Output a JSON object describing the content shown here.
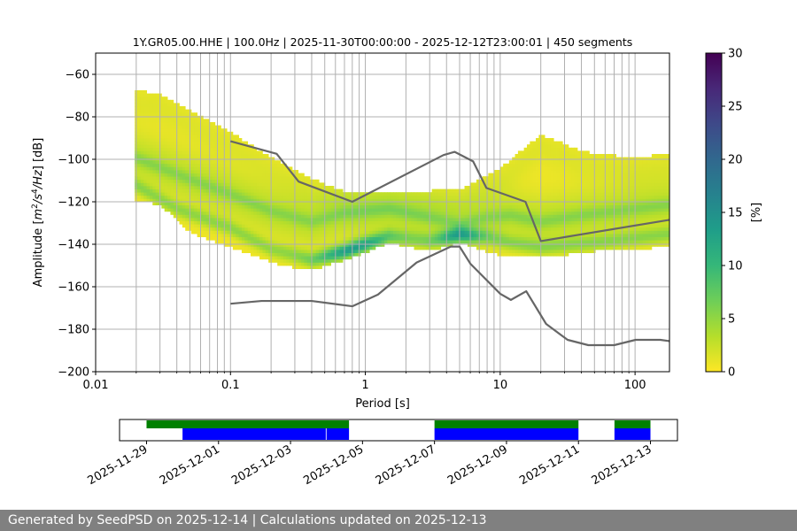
{
  "colors": {
    "model_line": "#666666",
    "grid": "#b0b0b0",
    "footer_bg": "#808080",
    "avail_top": "#008000",
    "avail_bottom": "#0000ff",
    "colormap": [
      "#fde725",
      "#b5de2b",
      "#6ece58",
      "#35b779",
      "#1f9e89",
      "#26828e",
      "#31688e",
      "#3e4989",
      "#482878",
      "#440154"
    ]
  },
  "chart_data": {
    "type": "heatmap",
    "title": "1Y.GR05.00.HHE | 100.0Hz | 2025-11-30T00:00:00 - 2025-12-12T23:00:01 | 450 segments",
    "xlabel": "Period [s]",
    "ylabel_main": "Amplitude [",
    "ylabel_unit_m": "m",
    "ylabel_exp1": "2",
    "ylabel_unit_s": "/s",
    "ylabel_exp2": "4",
    "ylabel_unit_hz": "/Hz",
    "ylabel_tail": "] [dB]",
    "x_scale": "log",
    "xlim": [
      0.01,
      180
    ],
    "ylim": [
      -200,
      -50
    ],
    "x_ticks": [
      {
        "v": 0.01,
        "label": "0.01"
      },
      {
        "v": 0.1,
        "label": "0.1"
      },
      {
        "v": 1,
        "label": "1"
      },
      {
        "v": 10,
        "label": "10"
      },
      {
        "v": 100,
        "label": "100"
      }
    ],
    "y_ticks": [
      {
        "v": -60,
        "label": "−60"
      },
      {
        "v": -80,
        "label": "−80"
      },
      {
        "v": -100,
        "label": "−100"
      },
      {
        "v": -120,
        "label": "−120"
      },
      {
        "v": -140,
        "label": "−140"
      },
      {
        "v": -160,
        "label": "−160"
      },
      {
        "v": -180,
        "label": "−180"
      },
      {
        "v": -200,
        "label": "−200"
      }
    ],
    "grid": true,
    "colorbar": {
      "label": "[%]",
      "range": [
        0,
        30
      ],
      "ticks": [
        {
          "v": 0,
          "label": "0"
        },
        {
          "v": 5,
          "label": "5"
        },
        {
          "v": 10,
          "label": "10"
        },
        {
          "v": 15,
          "label": "15"
        },
        {
          "v": 20,
          "label": "20"
        },
        {
          "v": 25,
          "label": "25"
        },
        {
          "v": 30,
          "label": "30"
        }
      ]
    },
    "high_noise_model": [
      [
        0.1,
        -91.5
      ],
      [
        0.22,
        -97.4
      ],
      [
        0.32,
        -110.5
      ],
      [
        0.8,
        -120
      ],
      [
        3.8,
        -98
      ],
      [
        4.6,
        -96.5
      ],
      [
        6.3,
        -101
      ],
      [
        7.9,
        -113.5
      ],
      [
        15.4,
        -120
      ],
      [
        20,
        -138.5
      ],
      [
        180,
        -128.5
      ]
    ],
    "low_noise_model": [
      [
        0.1,
        -168
      ],
      [
        0.17,
        -166.7
      ],
      [
        0.4,
        -166.7
      ],
      [
        0.8,
        -169.2
      ],
      [
        1.24,
        -163.7
      ],
      [
        2.4,
        -148.6
      ],
      [
        4.3,
        -141.1
      ],
      [
        5.0,
        -141.1
      ],
      [
        6.0,
        -149.1
      ],
      [
        10.0,
        -163.3
      ],
      [
        12.0,
        -166.2
      ],
      [
        15.6,
        -162.1
      ],
      [
        21.9,
        -177.5
      ],
      [
        31.6,
        -185.0
      ],
      [
        45.0,
        -187.5
      ],
      [
        70.0,
        -187.5
      ],
      [
        101.0,
        -185.0
      ],
      [
        154.0,
        -185.0
      ],
      [
        180.0,
        -185.6
      ]
    ],
    "psd_distribution": {
      "period_range": [
        0.0195,
        180
      ],
      "median": [
        [
          0.02,
          -100
        ],
        [
          0.05,
          -110
        ],
        [
          0.1,
          -117
        ],
        [
          0.2,
          -125
        ],
        [
          0.4,
          -130
        ],
        [
          0.7,
          -126
        ],
        [
          1.5,
          -124
        ],
        [
          3,
          -128
        ],
        [
          5,
          -131
        ],
        [
          8,
          -128
        ],
        [
          12,
          -127
        ],
        [
          20,
          -130
        ],
        [
          40,
          -127
        ],
        [
          100,
          -124
        ],
        [
          180,
          -122
        ]
      ],
      "low": [
        [
          0.02,
          -113
        ],
        [
          0.04,
          -124
        ],
        [
          0.1,
          -133
        ],
        [
          0.2,
          -143
        ],
        [
          0.4,
          -148
        ],
        [
          0.7,
          -144
        ],
        [
          1.5,
          -137
        ],
        [
          3,
          -139
        ],
        [
          5,
          -136
        ],
        [
          8,
          -137
        ],
        [
          12,
          -140
        ],
        [
          20,
          -142
        ],
        [
          50,
          -140
        ],
        [
          180,
          -136
        ]
      ],
      "low_peak": 12,
      "low_spread": 3.5,
      "peak_value": 14,
      "envelope_lower": [
        [
          0.02,
          -120
        ],
        [
          0.03,
          -122
        ],
        [
          0.05,
          -135
        ],
        [
          0.1,
          -142
        ],
        [
          0.25,
          -151
        ],
        [
          0.4,
          -153
        ],
        [
          0.8,
          -147
        ],
        [
          1.5,
          -140
        ],
        [
          3,
          -144
        ],
        [
          5,
          -140
        ],
        [
          10,
          -146
        ],
        [
          20,
          -147
        ],
        [
          50,
          -144
        ],
        [
          180,
          -142
        ]
      ],
      "envelope_upper": [
        [
          0.02,
          -68
        ],
        [
          0.03,
          -70
        ],
        [
          0.05,
          -78
        ],
        [
          0.1,
          -88
        ],
        [
          0.2,
          -100
        ],
        [
          0.4,
          -110
        ],
        [
          0.8,
          -117
        ],
        [
          2,
          -116
        ],
        [
          5,
          -115
        ],
        [
          10,
          -105
        ],
        [
          20,
          -89
        ],
        [
          40,
          -97
        ],
        [
          100,
          -100
        ],
        [
          180,
          -98
        ]
      ]
    },
    "availability": {
      "x_ticks": [
        {
          "date": "2025-11-29",
          "label": "2025-11-29"
        },
        {
          "date": "2025-12-01",
          "label": "2025-12-01"
        },
        {
          "date": "2025-12-03",
          "label": "2025-12-03"
        },
        {
          "date": "2025-12-05",
          "label": "2025-12-05"
        },
        {
          "date": "2025-12-07",
          "label": "2025-12-07"
        },
        {
          "date": "2025-12-09",
          "label": "2025-12-09"
        },
        {
          "date": "2025-12-11",
          "label": "2025-12-11"
        },
        {
          "date": "2025-12-13",
          "label": "2025-12-13"
        }
      ],
      "xlim": [
        "2025-11-28T06:00",
        "2025-12-13T18:00"
      ],
      "data_periods": [
        {
          "start": "2025-11-29T00:00",
          "end": "2025-12-04T15:00"
        },
        {
          "start": "2025-12-07T00:00",
          "end": "2025-12-11T00:00"
        },
        {
          "start": "2025-12-12T00:00",
          "end": "2025-12-13T00:00"
        }
      ],
      "processed_periods": [
        {
          "start": "2025-11-30T00:00",
          "end": "2025-12-03T23:30"
        },
        {
          "start": "2025-12-04T00:00",
          "end": "2025-12-04T15:00"
        },
        {
          "start": "2025-12-07T00:00",
          "end": "2025-12-11T00:00"
        },
        {
          "start": "2025-12-12T00:00",
          "end": "2025-12-13T00:00"
        }
      ]
    }
  },
  "footer": {
    "text": "Generated by SeedPSD on 2025-12-14 | Calculations updated on 2025-12-13"
  }
}
